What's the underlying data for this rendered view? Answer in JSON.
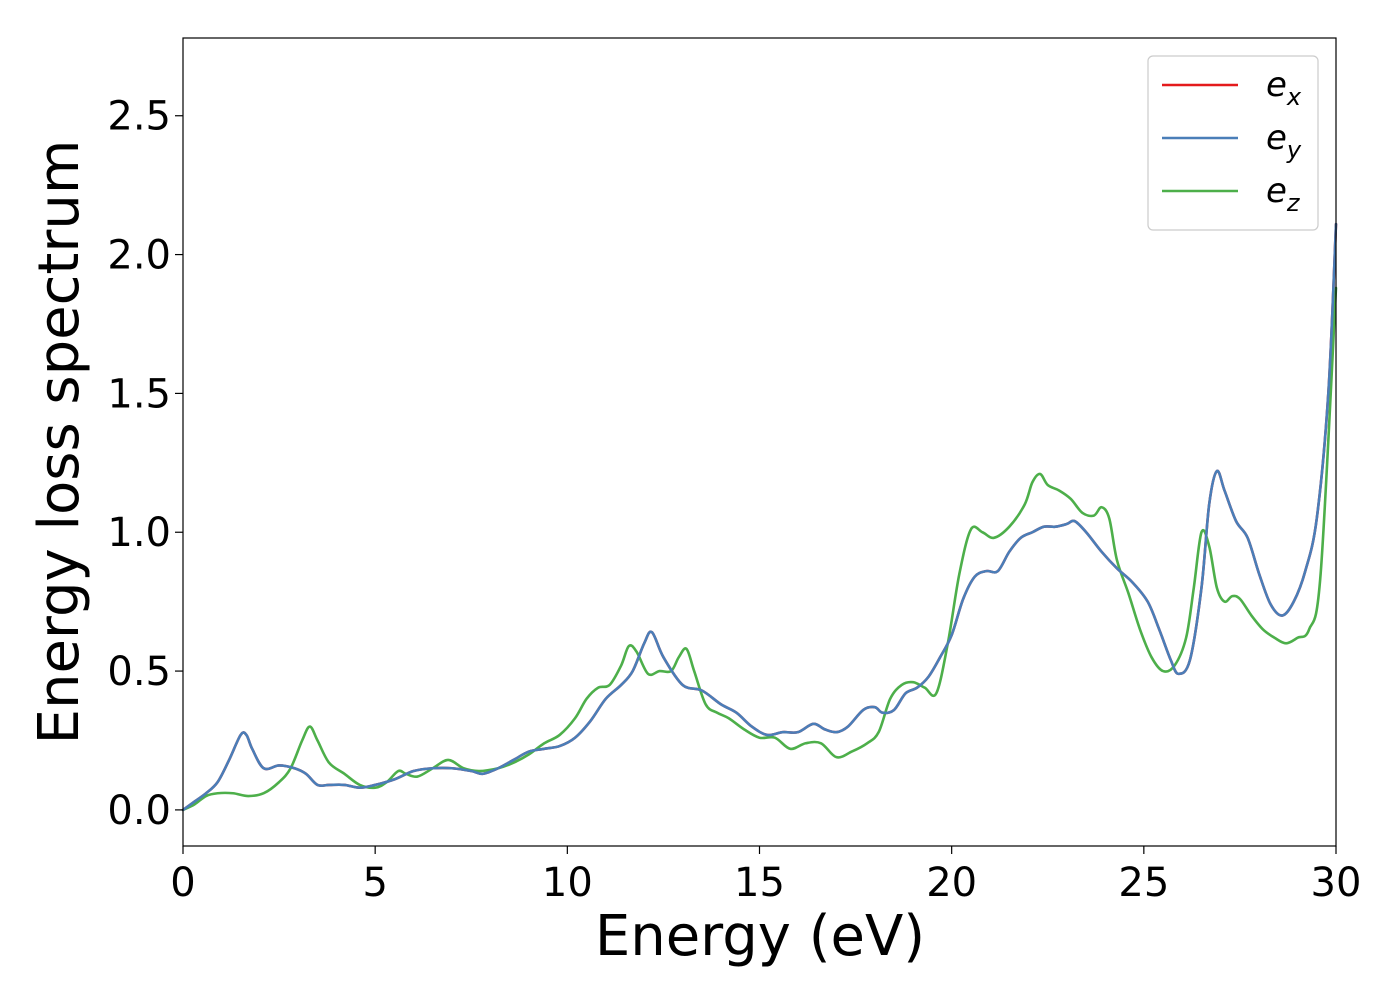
{
  "chart_data": {
    "type": "line",
    "xlabel": "Energy (eV)",
    "ylabel": "Energy loss spectrum",
    "xlim": [
      0,
      30
    ],
    "ylim": [
      -0.13,
      2.78
    ],
    "xticks": [
      0,
      5,
      10,
      15,
      20,
      25,
      30
    ],
    "xtick_labels": [
      "0",
      "5",
      "10",
      "15",
      "20",
      "25",
      "30"
    ],
    "yticks": [
      0.0,
      0.5,
      1.0,
      1.5,
      2.0,
      2.5
    ],
    "ytick_labels": [
      "0.0",
      "0.5",
      "1.0",
      "1.5",
      "2.0",
      "2.5"
    ],
    "grid": false,
    "legend_position": "top-right",
    "series": [
      {
        "name": "e",
        "name_sub": "x",
        "color": "#e41a1c",
        "x": [
          0,
          0.3,
          0.6,
          0.9,
          1.2,
          1.5,
          1.65,
          1.8,
          2.1,
          2.5,
          2.9,
          3.2,
          3.5,
          3.8,
          4.2,
          4.6,
          5.0,
          5.5,
          6.0,
          6.5,
          7.0,
          7.5,
          7.8,
          8.2,
          8.6,
          9.0,
          9.4,
          9.8,
          10.2,
          10.6,
          11.0,
          11.4,
          11.7,
          12.0,
          12.2,
          12.5,
          13.0,
          13.5,
          14.0,
          14.4,
          14.8,
          15.2,
          15.6,
          16.0,
          16.4,
          16.7,
          17.0,
          17.3,
          17.7,
          18.0,
          18.2,
          18.5,
          18.8,
          19.1,
          19.4,
          19.7,
          20.0,
          20.3,
          20.6,
          20.9,
          21.2,
          21.5,
          21.8,
          22.1,
          22.4,
          22.7,
          23.0,
          23.2,
          23.5,
          23.9,
          24.3,
          24.7,
          25.1,
          25.4,
          25.7,
          25.9,
          26.2,
          26.5,
          26.7,
          26.9,
          27.1,
          27.4,
          27.7,
          28.0,
          28.3,
          28.6,
          28.9,
          29.2,
          29.5,
          29.8,
          30.0
        ],
        "y": [
          0.0,
          0.03,
          0.06,
          0.1,
          0.18,
          0.27,
          0.27,
          0.22,
          0.15,
          0.16,
          0.15,
          0.13,
          0.09,
          0.09,
          0.09,
          0.08,
          0.09,
          0.11,
          0.14,
          0.15,
          0.15,
          0.14,
          0.13,
          0.15,
          0.18,
          0.21,
          0.22,
          0.23,
          0.26,
          0.32,
          0.4,
          0.45,
          0.5,
          0.6,
          0.64,
          0.55,
          0.45,
          0.43,
          0.38,
          0.35,
          0.3,
          0.27,
          0.28,
          0.28,
          0.31,
          0.29,
          0.28,
          0.3,
          0.36,
          0.37,
          0.35,
          0.36,
          0.42,
          0.44,
          0.48,
          0.55,
          0.63,
          0.76,
          0.84,
          0.86,
          0.86,
          0.93,
          0.98,
          1.0,
          1.02,
          1.02,
          1.03,
          1.04,
          1.0,
          0.93,
          0.87,
          0.82,
          0.75,
          0.65,
          0.54,
          0.49,
          0.54,
          0.8,
          1.1,
          1.22,
          1.15,
          1.04,
          0.98,
          0.85,
          0.74,
          0.7,
          0.75,
          0.86,
          1.05,
          1.5,
          2.11
        ]
      },
      {
        "name": "e",
        "name_sub": "y",
        "color": "#4a7eb8",
        "x": [
          0,
          0.3,
          0.6,
          0.9,
          1.2,
          1.5,
          1.65,
          1.8,
          2.1,
          2.5,
          2.9,
          3.2,
          3.5,
          3.8,
          4.2,
          4.6,
          5.0,
          5.5,
          6.0,
          6.5,
          7.0,
          7.5,
          7.8,
          8.2,
          8.6,
          9.0,
          9.4,
          9.8,
          10.2,
          10.6,
          11.0,
          11.4,
          11.7,
          12.0,
          12.2,
          12.5,
          13.0,
          13.5,
          14.0,
          14.4,
          14.8,
          15.2,
          15.6,
          16.0,
          16.4,
          16.7,
          17.0,
          17.3,
          17.7,
          18.0,
          18.2,
          18.5,
          18.8,
          19.1,
          19.4,
          19.7,
          20.0,
          20.3,
          20.6,
          20.9,
          21.2,
          21.5,
          21.8,
          22.1,
          22.4,
          22.7,
          23.0,
          23.2,
          23.5,
          23.9,
          24.3,
          24.7,
          25.1,
          25.4,
          25.7,
          25.9,
          26.2,
          26.5,
          26.7,
          26.9,
          27.1,
          27.4,
          27.7,
          28.0,
          28.3,
          28.6,
          28.9,
          29.2,
          29.5,
          29.8,
          30.0
        ],
        "y": [
          0.0,
          0.03,
          0.06,
          0.1,
          0.18,
          0.27,
          0.27,
          0.22,
          0.15,
          0.16,
          0.15,
          0.13,
          0.09,
          0.09,
          0.09,
          0.08,
          0.09,
          0.11,
          0.14,
          0.15,
          0.15,
          0.14,
          0.13,
          0.15,
          0.18,
          0.21,
          0.22,
          0.23,
          0.26,
          0.32,
          0.4,
          0.45,
          0.5,
          0.6,
          0.64,
          0.55,
          0.45,
          0.43,
          0.38,
          0.35,
          0.3,
          0.27,
          0.28,
          0.28,
          0.31,
          0.29,
          0.28,
          0.3,
          0.36,
          0.37,
          0.35,
          0.36,
          0.42,
          0.44,
          0.48,
          0.55,
          0.63,
          0.76,
          0.84,
          0.86,
          0.86,
          0.93,
          0.98,
          1.0,
          1.02,
          1.02,
          1.03,
          1.04,
          1.0,
          0.93,
          0.87,
          0.82,
          0.75,
          0.65,
          0.54,
          0.49,
          0.54,
          0.8,
          1.1,
          1.22,
          1.15,
          1.04,
          0.98,
          0.85,
          0.74,
          0.7,
          0.75,
          0.86,
          1.05,
          1.5,
          2.11
        ]
      },
      {
        "name": "e",
        "name_sub": "z",
        "color": "#4daf4a",
        "x": [
          0,
          0.3,
          0.6,
          0.9,
          1.3,
          1.7,
          2.1,
          2.5,
          2.8,
          3.1,
          3.3,
          3.5,
          3.8,
          4.2,
          4.6,
          5.0,
          5.3,
          5.6,
          5.8,
          6.1,
          6.5,
          6.9,
          7.3,
          7.7,
          8.2,
          8.6,
          9.0,
          9.4,
          9.8,
          10.2,
          10.5,
          10.8,
          11.1,
          11.4,
          11.6,
          11.8,
          12.1,
          12.4,
          12.7,
          12.9,
          13.1,
          13.3,
          13.6,
          13.9,
          14.2,
          14.6,
          15.0,
          15.4,
          15.8,
          16.2,
          16.6,
          17.0,
          17.4,
          17.8,
          18.1,
          18.4,
          18.7,
          19.0,
          19.3,
          19.6,
          19.9,
          20.2,
          20.5,
          20.8,
          21.1,
          21.5,
          21.9,
          22.1,
          22.3,
          22.5,
          22.8,
          23.1,
          23.4,
          23.7,
          23.9,
          24.1,
          24.3,
          24.6,
          24.9,
          25.2,
          25.5,
          25.8,
          26.1,
          26.3,
          26.5,
          26.7,
          26.9,
          27.1,
          27.3,
          27.5,
          27.8,
          28.1,
          28.4,
          28.7,
          29.0,
          29.3,
          29.6,
          30.0
        ],
        "y": [
          0.0,
          0.02,
          0.05,
          0.06,
          0.06,
          0.05,
          0.06,
          0.1,
          0.15,
          0.25,
          0.3,
          0.25,
          0.17,
          0.13,
          0.09,
          0.08,
          0.1,
          0.14,
          0.13,
          0.12,
          0.15,
          0.18,
          0.15,
          0.14,
          0.15,
          0.17,
          0.2,
          0.24,
          0.27,
          0.33,
          0.4,
          0.44,
          0.45,
          0.52,
          0.59,
          0.57,
          0.49,
          0.5,
          0.5,
          0.55,
          0.58,
          0.5,
          0.38,
          0.35,
          0.33,
          0.29,
          0.26,
          0.26,
          0.22,
          0.24,
          0.24,
          0.19,
          0.21,
          0.24,
          0.28,
          0.4,
          0.45,
          0.46,
          0.44,
          0.42,
          0.6,
          0.85,
          1.01,
          1.0,
          0.98,
          1.02,
          1.1,
          1.18,
          1.21,
          1.17,
          1.15,
          1.12,
          1.07,
          1.06,
          1.09,
          1.05,
          0.9,
          0.78,
          0.65,
          0.55,
          0.5,
          0.52,
          0.62,
          0.8,
          1.0,
          0.95,
          0.8,
          0.75,
          0.77,
          0.76,
          0.7,
          0.65,
          0.62,
          0.6,
          0.62,
          0.65,
          0.85,
          1.88
        ]
      }
    ]
  }
}
